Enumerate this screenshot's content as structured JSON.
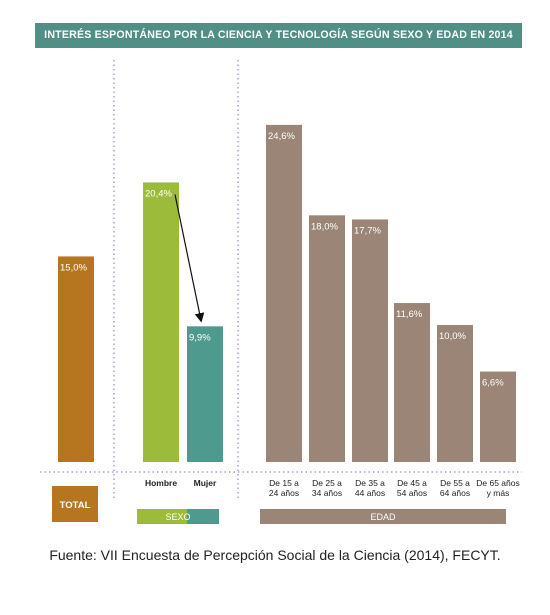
{
  "title": "INTERÉS ESPONTÁNEO POR LA CIENCIA Y TECNOLOGÍA SEGÚN SEXO Y EDAD EN 2014",
  "source": "Fuente: VII Encuesta de Percepción Social de la Ciencia (2014), FECYT.",
  "colors": {
    "title_bg": "#4f8f86",
    "total": "#b5761f",
    "hombre": "#9dbb3a",
    "mujer": "#4f9a8f",
    "edad": "#9a8576",
    "separator": "#7a73b8"
  },
  "chart_data": {
    "type": "bar",
    "title": "INTERÉS ESPONTÁNEO POR LA CIENCIA Y TECNOLOGÍA SEGÚN SEXO Y EDAD EN 2014",
    "ylim": [
      0,
      27
    ],
    "value_suffix": "%",
    "groups": [
      {
        "name": "TOTAL",
        "bars": [
          {
            "category": "",
            "value": 15.0,
            "label": "15,0%"
          }
        ]
      },
      {
        "name": "SEXO",
        "bars": [
          {
            "category": "Hombre",
            "value": 20.4,
            "label": "20,4%"
          },
          {
            "category": "Mujer",
            "value": 9.9,
            "label": "9,9%"
          }
        ]
      },
      {
        "name": "EDAD",
        "bars": [
          {
            "category": [
              "De 15 a",
              "24 años"
            ],
            "value": 24.6,
            "label": "24,6%"
          },
          {
            "category": [
              "De 25 a",
              "34 años"
            ],
            "value": 18.0,
            "label": "18,0%"
          },
          {
            "category": [
              "De 35 a",
              "44 años"
            ],
            "value": 17.7,
            "label": "17,7%"
          },
          {
            "category": [
              "De 45 a",
              "54 años"
            ],
            "value": 11.6,
            "label": "11,6%"
          },
          {
            "category": [
              "De 55 a",
              "64 años"
            ],
            "value": 10.0,
            "label": "10,0%"
          },
          {
            "category": [
              "De 65 años",
              "y más"
            ],
            "value": 6.6,
            "label": "6,6%"
          }
        ]
      }
    ],
    "annotations": [
      {
        "type": "arrow",
        "from": "Hombre",
        "to": "Mujer"
      }
    ],
    "grid": false
  }
}
